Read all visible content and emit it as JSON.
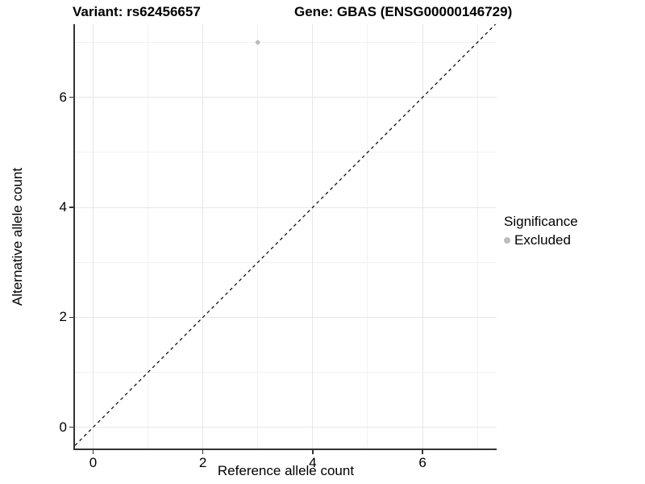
{
  "chart_data": {
    "type": "scatter",
    "title_left": "Variant: rs62456657",
    "title_right": "Gene: GBAS (ENSG00000146729)",
    "xlabel": "Reference allele count",
    "ylabel": "Alternative allele count",
    "xlim": [
      -0.33,
      7.35
    ],
    "ylim": [
      -0.4,
      7.33
    ],
    "x_major_ticks": [
      0,
      2,
      4,
      6
    ],
    "y_major_ticks": [
      0,
      2,
      4,
      6
    ],
    "x_minor_ticks": [
      1,
      3,
      5,
      7
    ],
    "y_minor_ticks": [
      1,
      3,
      5,
      7
    ],
    "grid": true,
    "points": [
      {
        "x": 3,
        "y": 7,
        "significance": "Excluded"
      }
    ],
    "identity_line": {
      "slope": 1,
      "intercept": 0,
      "style": "dashed",
      "color": "#000000"
    },
    "legend": {
      "title": "Significance",
      "position": "right",
      "entries": [
        {
          "label": "Excluded",
          "color": "#bdbdbd"
        }
      ]
    },
    "colors": {
      "point": "#bdbdbd",
      "grid_major": "#e7e7e7",
      "grid_minor": "#f1f1f1",
      "axis_line": "#333333",
      "background": "#ffffff",
      "text": "#000000"
    }
  }
}
